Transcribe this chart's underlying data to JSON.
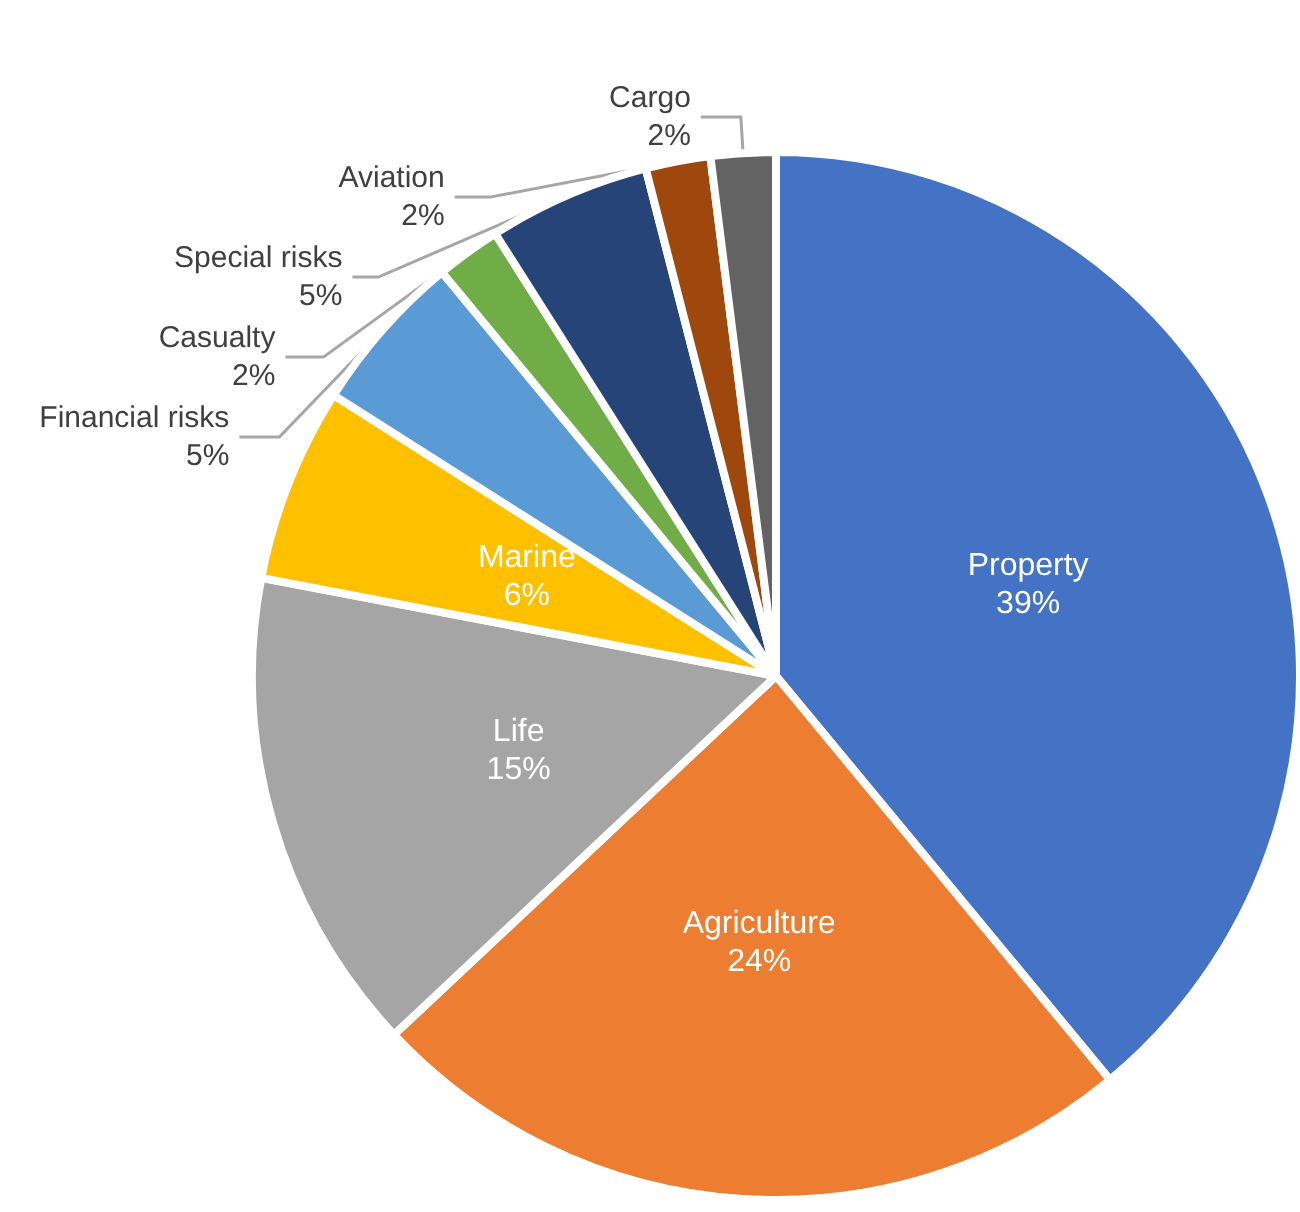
{
  "chart_data": {
    "type": "pie",
    "categories": [
      "Property",
      "Agriculture",
      "Life",
      "Marine",
      "Financial risks",
      "Casualty",
      "Special risks",
      "Aviation",
      "Cargo"
    ],
    "values": [
      39,
      24,
      15,
      6,
      5,
      2,
      5,
      2,
      2
    ],
    "value_labels": [
      "39%",
      "24%",
      "15%",
      "6%",
      "5%",
      "2%",
      "5%",
      "2%",
      "2%"
    ],
    "colors": [
      "#4472c4",
      "#ed7d31",
      "#a5a5a5",
      "#ffc000",
      "#5b9bd5",
      "#70ad47",
      "#264478",
      "#9e480e",
      "#636363"
    ],
    "legend": false
  }
}
